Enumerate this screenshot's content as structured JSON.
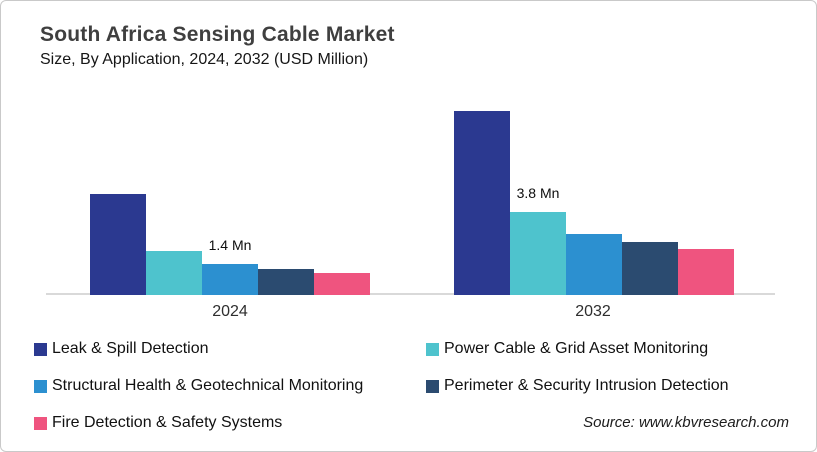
{
  "page": {
    "source_text": "Source: www.kbvresearch.com"
  },
  "chart_data": {
    "type": "bar",
    "title": "South Africa Sensing Cable Market",
    "subtitle": "Size, By Application, 2024, 2032 (USD Million)",
    "unit": "USD Million",
    "categories": [
      "2024",
      "2032"
    ],
    "series": [
      {
        "name": "Leak & Spill Detection",
        "color": "#2B3990",
        "values": [
          4.6,
          8.4
        ]
      },
      {
        "name": "Power Cable & Grid Asset Monitoring",
        "color": "#4EC3CD",
        "values": [
          2.0,
          3.8
        ]
      },
      {
        "name": "Structural Health & Geotechnical Monitoring",
        "color": "#2C90D0",
        "values": [
          1.4,
          2.8
        ]
      },
      {
        "name": "Perimeter & Security Intrusion Detection",
        "color": "#2B4B70",
        "values": [
          1.2,
          2.4
        ]
      },
      {
        "name": "Fire Detection & Safety Systems",
        "color": "#EF547F",
        "values": [
          1.0,
          2.1
        ]
      }
    ],
    "data_labels": [
      {
        "category": "2024",
        "series_index": 2,
        "text": "1.4 Mn"
      },
      {
        "category": "2032",
        "series_index": 1,
        "text": "3.8 Mn"
      }
    ],
    "ylim": [
      0,
      9.2
    ],
    "grid": false,
    "legend_position": "bottom",
    "axis_color": "#D9D9D9"
  }
}
